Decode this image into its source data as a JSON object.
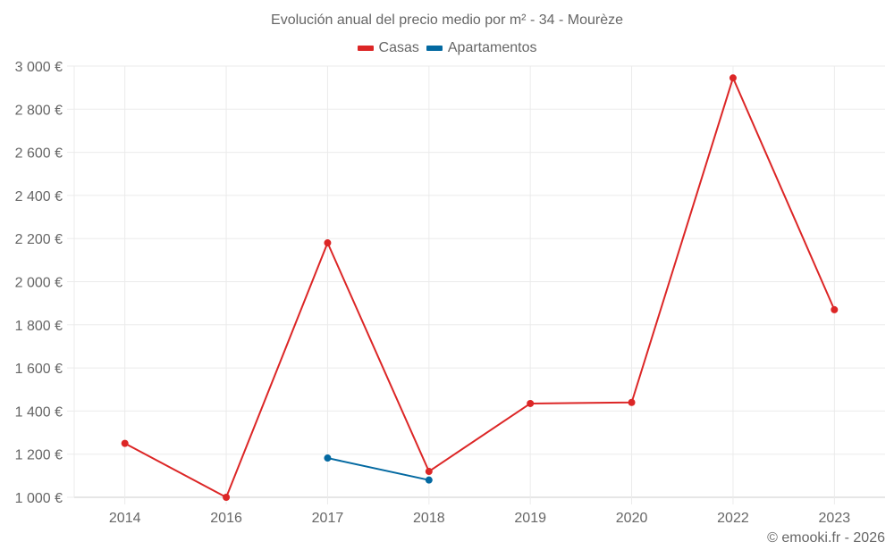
{
  "title": "Evolución anual del precio medio por m² - 34 - Mourèze",
  "legend": [
    {
      "label": "Casas",
      "color": "#dc2626"
    },
    {
      "label": "Apartamentos",
      "color": "#0369a1"
    }
  ],
  "credit": "© emooki.fr - 2026",
  "chart_data": {
    "type": "line",
    "title": "Evolución anual del precio medio por m² - 34 - Mourèze",
    "xlabel": "",
    "ylabel": "",
    "categories": [
      "2014",
      "2016",
      "2017",
      "2018",
      "2019",
      "2020",
      "2022",
      "2023"
    ],
    "series": [
      {
        "name": "Casas",
        "color": "#dc2626",
        "values": [
          1250,
          1000,
          2180,
          1120,
          1435,
          1440,
          2945,
          1870
        ]
      },
      {
        "name": "Apartamentos",
        "color": "#0369a1",
        "values": [
          null,
          null,
          1182,
          1080,
          null,
          null,
          null,
          null
        ]
      }
    ],
    "ylim": [
      1000,
      3000
    ],
    "yticks": [
      1000,
      1200,
      1400,
      1600,
      1800,
      2000,
      2200,
      2400,
      2600,
      2800,
      3000
    ],
    "ytick_labels": [
      "1 000 €",
      "1 200 €",
      "1 400 €",
      "1 600 €",
      "1 800 €",
      "2 000 €",
      "2 200 €",
      "2 400 €",
      "2 600 €",
      "2 800 €",
      "3 000 €"
    ],
    "grid": true,
    "legend_position": "top"
  }
}
